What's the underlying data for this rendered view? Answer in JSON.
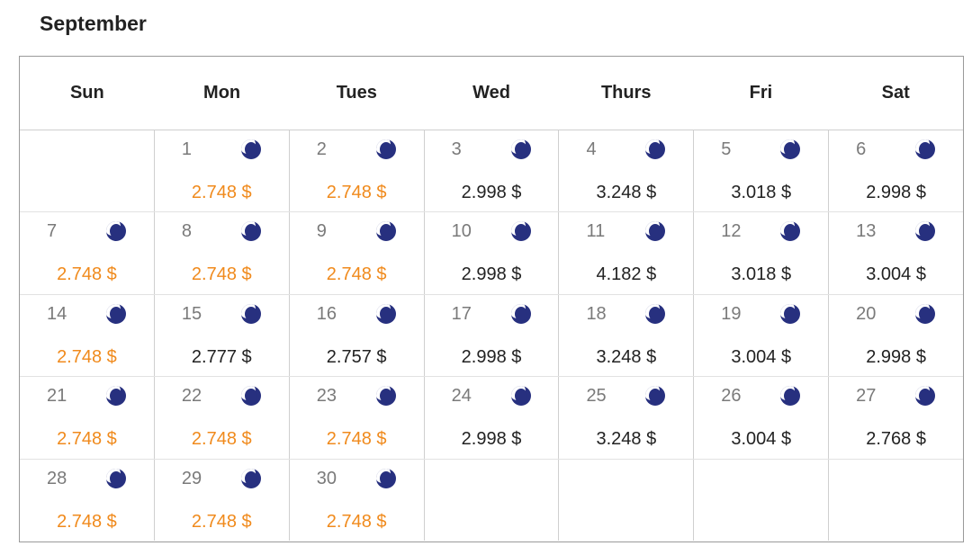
{
  "month": "September",
  "weekdays": [
    "Sun",
    "Mon",
    "Tues",
    "Wed",
    "Thurs",
    "Fri",
    "Sat"
  ],
  "colors": {
    "low_price": "#f08a1c",
    "normal_price": "#222222",
    "moon": "#27307f"
  },
  "weeks": [
    [
      null,
      {
        "day": "1",
        "price": "2.748 $",
        "low": true,
        "icon": "moon-icon"
      },
      {
        "day": "2",
        "price": "2.748 $",
        "low": true,
        "icon": "moon-icon"
      },
      {
        "day": "3",
        "price": "2.998 $",
        "low": false,
        "icon": "moon-icon"
      },
      {
        "day": "4",
        "price": "3.248 $",
        "low": false,
        "icon": "moon-icon"
      },
      {
        "day": "5",
        "price": "3.018 $",
        "low": false,
        "icon": "moon-icon"
      },
      {
        "day": "6",
        "price": "2.998 $",
        "low": false,
        "icon": "moon-icon"
      }
    ],
    [
      {
        "day": "7",
        "price": "2.748 $",
        "low": true,
        "icon": "moon-icon"
      },
      {
        "day": "8",
        "price": "2.748 $",
        "low": true,
        "icon": "moon-icon"
      },
      {
        "day": "9",
        "price": "2.748 $",
        "low": true,
        "icon": "moon-icon"
      },
      {
        "day": "10",
        "price": "2.998 $",
        "low": false,
        "icon": "moon-icon"
      },
      {
        "day": "11",
        "price": "4.182 $",
        "low": false,
        "icon": "moon-icon"
      },
      {
        "day": "12",
        "price": "3.018 $",
        "low": false,
        "icon": "moon-icon"
      },
      {
        "day": "13",
        "price": "3.004 $",
        "low": false,
        "icon": "moon-icon"
      }
    ],
    [
      {
        "day": "14",
        "price": "2.748 $",
        "low": true,
        "icon": "moon-icon"
      },
      {
        "day": "15",
        "price": "2.777 $",
        "low": false,
        "icon": "moon-icon"
      },
      {
        "day": "16",
        "price": "2.757 $",
        "low": false,
        "icon": "moon-icon"
      },
      {
        "day": "17",
        "price": "2.998 $",
        "low": false,
        "icon": "moon-icon"
      },
      {
        "day": "18",
        "price": "3.248 $",
        "low": false,
        "icon": "moon-icon"
      },
      {
        "day": "19",
        "price": "3.004 $",
        "low": false,
        "icon": "moon-icon"
      },
      {
        "day": "20",
        "price": "2.998 $",
        "low": false,
        "icon": "moon-icon"
      }
    ],
    [
      {
        "day": "21",
        "price": "2.748 $",
        "low": true,
        "icon": "moon-icon"
      },
      {
        "day": "22",
        "price": "2.748 $",
        "low": true,
        "icon": "moon-icon"
      },
      {
        "day": "23",
        "price": "2.748 $",
        "low": true,
        "icon": "moon-icon"
      },
      {
        "day": "24",
        "price": "2.998 $",
        "low": false,
        "icon": "moon-icon"
      },
      {
        "day": "25",
        "price": "3.248 $",
        "low": false,
        "icon": "moon-icon"
      },
      {
        "day": "26",
        "price": "3.004 $",
        "low": false,
        "icon": "moon-icon"
      },
      {
        "day": "27",
        "price": "2.768 $",
        "low": false,
        "icon": "moon-icon"
      }
    ],
    [
      {
        "day": "28",
        "price": "2.748 $",
        "low": true,
        "icon": "moon-icon"
      },
      {
        "day": "29",
        "price": "2.748 $",
        "low": true,
        "icon": "moon-icon"
      },
      {
        "day": "30",
        "price": "2.748 $",
        "low": true,
        "icon": "moon-icon"
      },
      null,
      null,
      null,
      null
    ]
  ]
}
